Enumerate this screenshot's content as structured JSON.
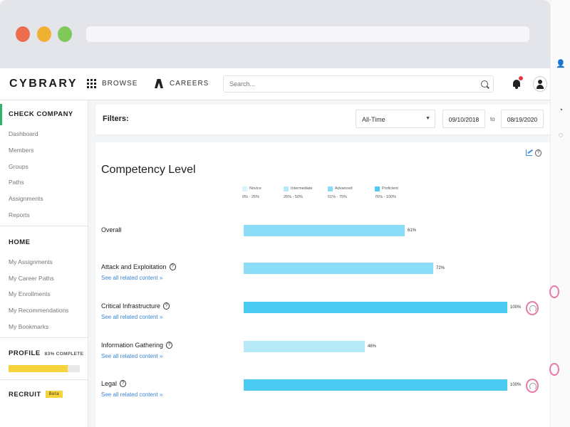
{
  "colors": {
    "novice": "#d9f3fb",
    "intermediate": "#b6e9f8",
    "advanced": "#8bdcf7",
    "proficient": "#4dccf3",
    "accent_green": "#2fb36b",
    "progress_yellow": "#f6d33a",
    "link_blue": "#3a86d6",
    "gauge_pink": "#e879a8"
  },
  "topnav": {
    "logo": "CYBRARY",
    "browse_label": "BROWSE",
    "careers_label": "CAREERS",
    "search_placeholder": "Search..."
  },
  "sidebar": {
    "company_heading": "CHECK COMPANY",
    "company_links": [
      "Dashboard",
      "Members",
      "Groups",
      "Paths",
      "Assignments",
      "Reports"
    ],
    "home_heading": "HOME",
    "home_links": [
      "My Assignments",
      "My Career Paths",
      "My Enrollments",
      "My Recommendations",
      "My Bookmarks"
    ],
    "profile_heading": "PROFILE",
    "profile_complete": "83% COMPLETE",
    "profile_progress": 0.83,
    "recruit_heading": "RECRUIT",
    "recruit_badge": "Beta"
  },
  "filters": {
    "label": "Filters:",
    "range_select": "All-Time",
    "date_from": "09/10/2018",
    "to_label": "to",
    "date_to": "08/19/2020"
  },
  "competency": {
    "title": "Competency Level",
    "legend": [
      {
        "name": "Novice",
        "range": "0% - 25%",
        "color": "#d9f3fb"
      },
      {
        "name": "Intermediate",
        "range": "26% - 50%",
        "color": "#b6e9f8"
      },
      {
        "name": "Advanced",
        "range": "51% - 75%",
        "color": "#8bdcf7"
      },
      {
        "name": "Proficient",
        "range": "76% - 100%",
        "color": "#4dccf3"
      }
    ],
    "see_all_label": "See all related content »",
    "rows": [
      {
        "label": "Overall",
        "value": 61,
        "value_label": "61%",
        "has_link": false,
        "has_help": false,
        "level": "advanced"
      },
      {
        "label": "Attack and Exploitation",
        "value": 72,
        "value_label": "72%",
        "has_link": true,
        "has_help": true,
        "level": "advanced"
      },
      {
        "label": "Critical Infrastructure",
        "value": 100,
        "value_label": "100%",
        "has_link": true,
        "has_help": true,
        "level": "proficient"
      },
      {
        "label": "Information Gathering",
        "value": 46,
        "value_label": "46%",
        "has_link": true,
        "has_help": true,
        "level": "intermediate"
      },
      {
        "label": "Legal",
        "value": 100,
        "value_label": "100%",
        "has_link": true,
        "has_help": true,
        "level": "proficient"
      }
    ]
  }
}
